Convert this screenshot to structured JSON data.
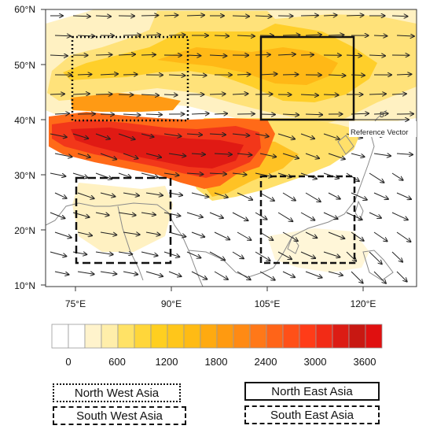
{
  "map": {
    "lat_labels": [
      "60°N",
      "50°N",
      "40°N",
      "30°N",
      "20°N",
      "10°N"
    ],
    "lon_labels": [
      "75°E",
      "90°E",
      "105°E",
      "120°E"
    ],
    "reference_vector": {
      "label": "Reference Vector",
      "magnitude": "5"
    },
    "regions": [
      {
        "name": "North West Asia",
        "border": "dotted"
      },
      {
        "name": "North East Asia",
        "border": "solid"
      },
      {
        "name": "South West Asia",
        "border": "long-dashed"
      },
      {
        "name": "South East Asia",
        "border": "dashed"
      }
    ]
  },
  "colorbar": {
    "tick_labels": [
      "0",
      "600",
      "1200",
      "1800",
      "2400",
      "3000",
      "3600"
    ],
    "colors": [
      "#ffffff",
      "#ffffff",
      "#fff3cc",
      "#ffeeaa",
      "#ffe266",
      "#ffd63a",
      "#ffcf20",
      "#ffc61a",
      "#ffbb14",
      "#ffaa10",
      "#ff9a10",
      "#ff8a14",
      "#ff7818",
      "#ff6418",
      "#ff5018",
      "#ff3c18",
      "#f22b16",
      "#dc1c14",
      "#c81812",
      "#e01010"
    ]
  },
  "legend": {
    "north_west": "North West Asia",
    "north_east": "North East Asia",
    "south_west": "South West Asia",
    "south_east": "South East Asia"
  }
}
